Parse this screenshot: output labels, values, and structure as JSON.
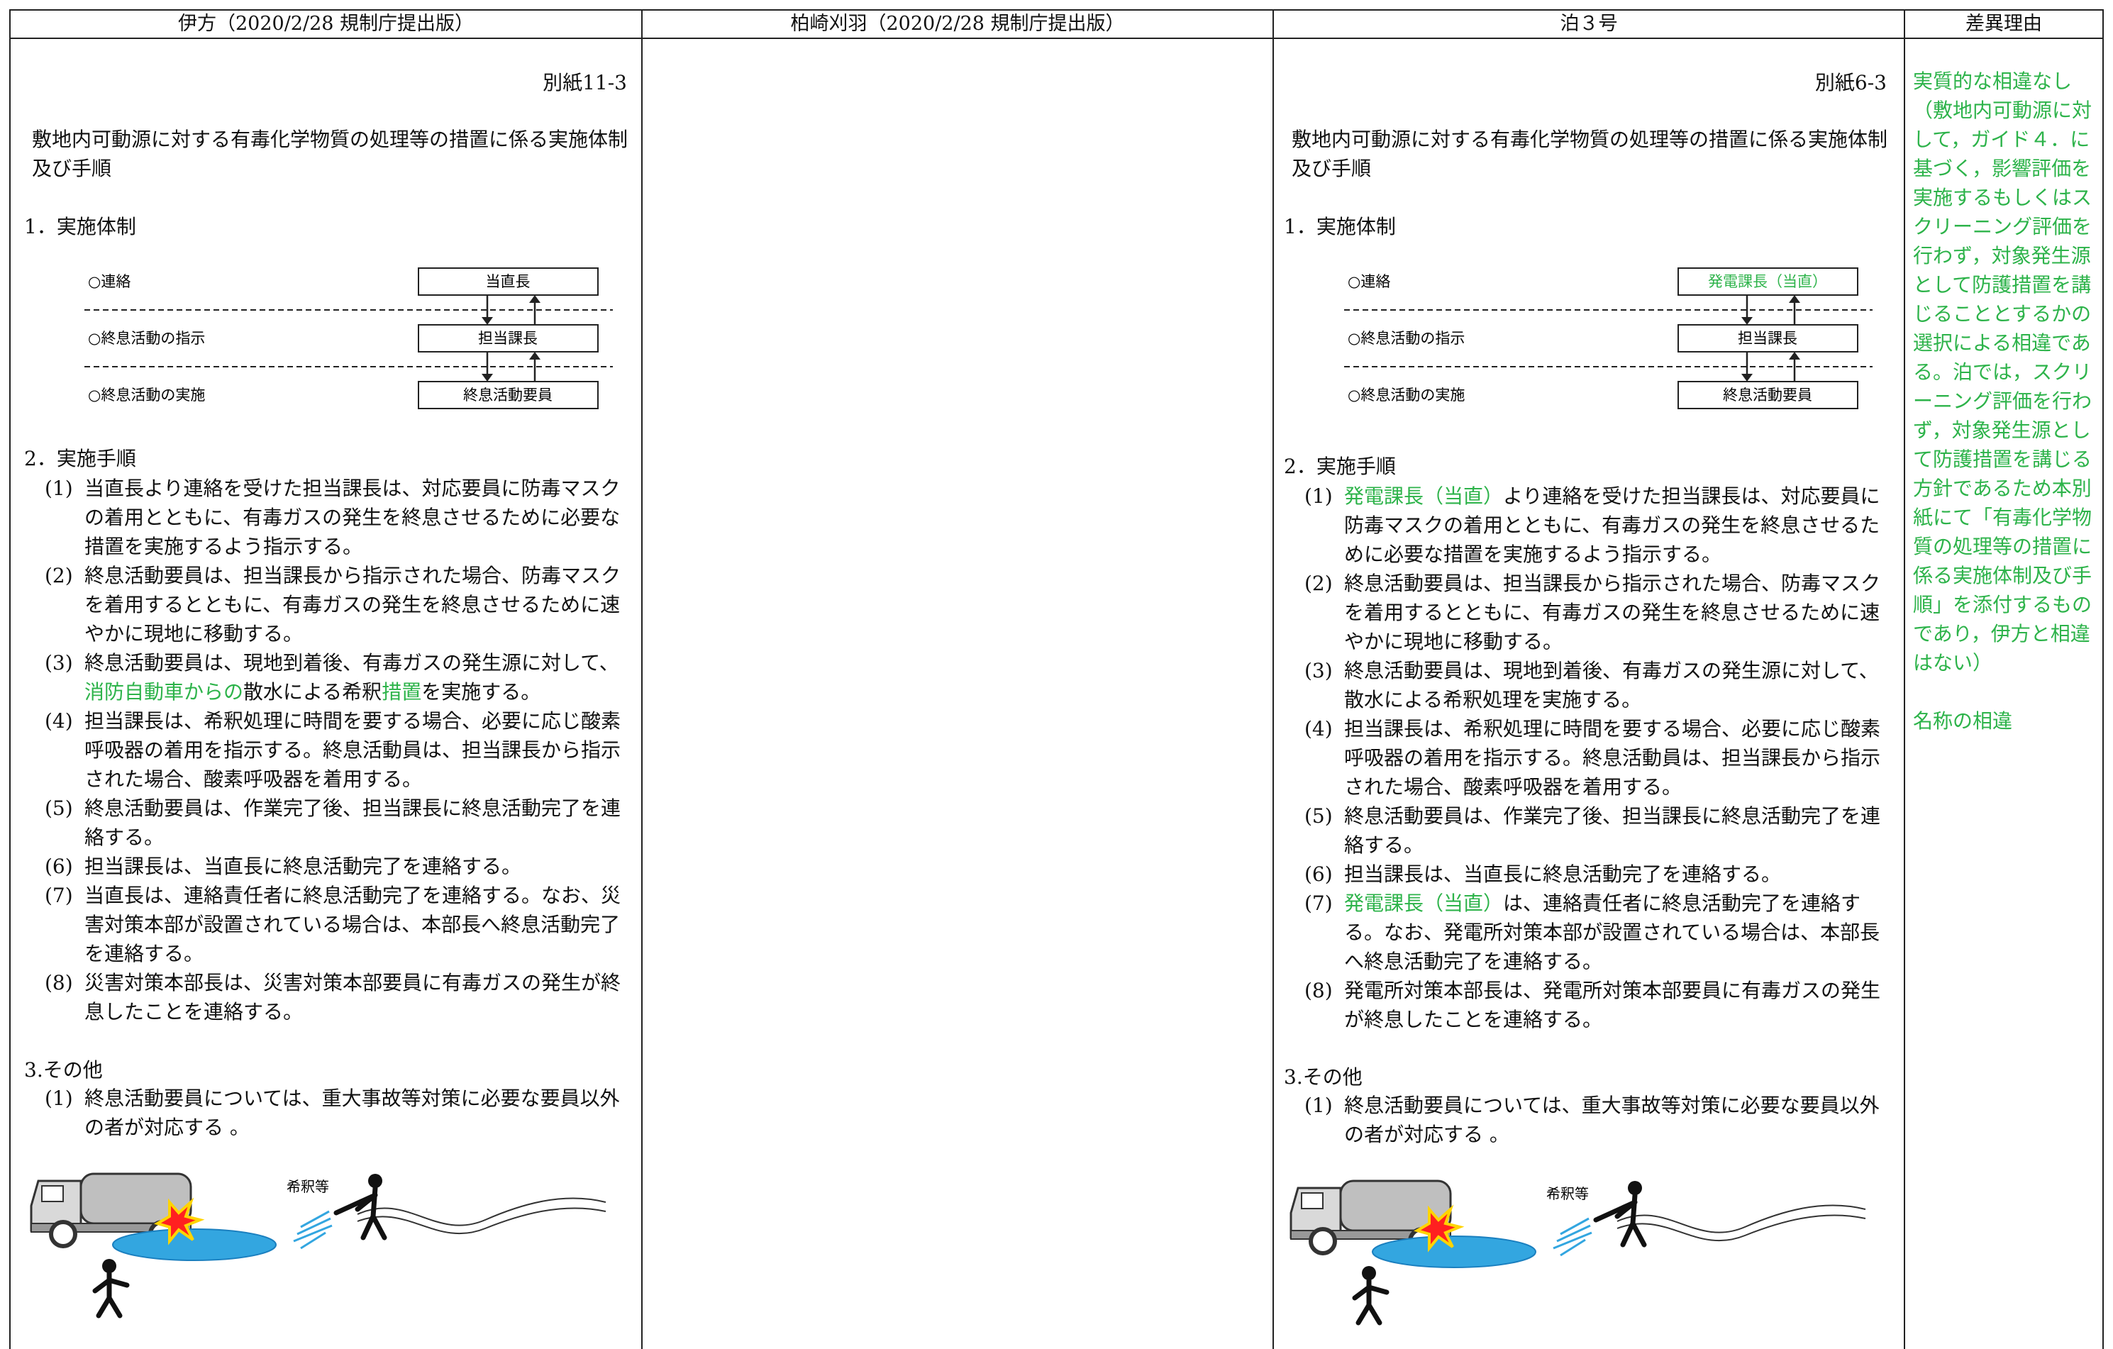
{
  "header": {
    "columns": [
      "伊方（2020/2/28 規制庁提出版）",
      "柏崎刈羽（2020/2/28 規制庁提出版）",
      "泊３号",
      "差異理由"
    ]
  },
  "ikata": {
    "ref": "別紙11-3",
    "title": "敷地内可動源に対する有毒化学物質の処理等の措置に係る実施体制及び手順",
    "section1": "1．実施体制",
    "diagram": [
      {
        "label": "○連絡",
        "box": "当直長"
      },
      {
        "label": "○終息活動の指示",
        "box": "担当課長"
      },
      {
        "label": "○終息活動の実施",
        "box": "終息活動要員"
      }
    ],
    "section2": "2．実施手順",
    "steps": [
      {
        "num": "(1)",
        "segments": [
          {
            "text": "当直長より連絡を受けた担当課長は、対応要員に防毒マスクの着用とともに、有毒ガスの発生を終息させるために必要な措置を実施するよう指示する。"
          }
        ]
      },
      {
        "num": "(2)",
        "segments": [
          {
            "text": "終息活動要員は、担当課長から指示された場合、防毒マスクを着用するとともに、有毒ガスの発生を終息させるために速やかに現地に移動する。"
          }
        ]
      },
      {
        "num": "(3)",
        "segments": [
          {
            "text": "終息活動要員は、現地到着後、有毒ガスの発生源に対して、"
          },
          {
            "text": "消防自動車からの",
            "color": "#2db34a"
          },
          {
            "text": "散水による希釈"
          },
          {
            "text": "措置",
            "color": "#2db34a"
          },
          {
            "text": "を実施する。"
          }
        ]
      },
      {
        "num": "(4)",
        "segments": [
          {
            "text": "担当課長は、希釈処理に時間を要する場合、必要に応じ酸素呼吸器の着用を指示する。終息活動員は、担当課長から指示された場合、酸素呼吸器を着用する。"
          }
        ]
      },
      {
        "num": "(5)",
        "segments": [
          {
            "text": "終息活動要員は、作業完了後、担当課長に終息活動完了を連絡する。"
          }
        ]
      },
      {
        "num": "(6)",
        "segments": [
          {
            "text": "担当課長は、当直長に終息活動完了を連絡する。"
          }
        ]
      },
      {
        "num": "(7)",
        "segments": [
          {
            "text": "当直長は、連絡責任者に終息活動完了を連絡する。なお、災害対策本部が設置されている場合は、本部長へ終息活動完了を連絡する。"
          }
        ]
      },
      {
        "num": "(8)",
        "segments": [
          {
            "text": "災害対策本部長は、災害対策本部要員に有毒ガスの発生が終息したことを連絡する。"
          }
        ]
      }
    ],
    "section3": "3.その他",
    "other": [
      {
        "num": "(1)",
        "segments": [
          {
            "text": "終息活動要員については、重大事故等対策に必要な要員以外の者が対応する 。"
          }
        ]
      }
    ],
    "figure_label": "希釈等"
  },
  "tomari": {
    "ref": "別紙6-3",
    "title": "敷地内可動源に対する有毒化学物質の処理等の措置に係る実施体制及び手順",
    "section1": "1．実施体制",
    "diagram": [
      {
        "label": "○連絡",
        "box": "発電課長（当直）",
        "color": "#2db34a"
      },
      {
        "label": "○終息活動の指示",
        "box": "担当課長"
      },
      {
        "label": "○終息活動の実施",
        "box": "終息活動要員"
      }
    ],
    "section2": "2．実施手順",
    "steps": [
      {
        "num": "(1)",
        "segments": [
          {
            "text": "発電課長（当直）",
            "color": "#2db34a"
          },
          {
            "text": "より連絡を受けた担当課長は、対応要員に防毒マスクの着用とともに、有毒ガスの発生を終息させるために必要な措置を実施するよう指示する。"
          }
        ]
      },
      {
        "num": "(2)",
        "segments": [
          {
            "text": "終息活動要員は、担当課長から指示された場合、防毒マスクを着用するとともに、有毒ガスの発生を終息させるために速やかに現地に移動する。"
          }
        ]
      },
      {
        "num": "(3)",
        "segments": [
          {
            "text": "終息活動要員は、現地到着後、有毒ガスの発生源に対して、散水による希釈処理を実施する。"
          }
        ]
      },
      {
        "num": "(4)",
        "segments": [
          {
            "text": "担当課長は、希釈処理に時間を要する場合、必要に応じ酸素呼吸器の着用を指示する。終息活動員は、担当課長から指示された場合、酸素呼吸器を着用する。"
          }
        ]
      },
      {
        "num": "(5)",
        "segments": [
          {
            "text": "終息活動要員は、作業完了後、担当課長に終息活動完了を連絡する。"
          }
        ]
      },
      {
        "num": "(6)",
        "segments": [
          {
            "text": "担当課長は、当直長に終息活動完了を連絡する。"
          }
        ]
      },
      {
        "num": "(7)",
        "segments": [
          {
            "text": "発電課長（当直）",
            "color": "#2db34a"
          },
          {
            "text": "は、連絡責任者に終息活動完了を連絡する。なお、発電所対策本部が設置されている場合は、本部長へ終息活動完了を連絡する。"
          }
        ]
      },
      {
        "num": "(8)",
        "segments": [
          {
            "text": "発電所対策本部長は、発電所対策本部要員に有毒ガスの発生が終息したことを連絡する。"
          }
        ]
      }
    ],
    "section3": "3.その他",
    "other": [
      {
        "num": "(1)",
        "segments": [
          {
            "text": "終息活動要員については、重大事故等対策に必要な要員以外の者が対応する 。"
          }
        ]
      }
    ],
    "figure_label": "希釈等"
  },
  "reasons": [
    {
      "text": "実質的な相違なし（敷地内可動源に対して，ガイド４．に基づく，影響評価を実施するもしくはスクリーニング評価を行わず，対象発生源として防護措置を講じることとするかの選択による相違である。泊では，スクリーニング評価を行わず，対象発生源として防護措置を講じる方針であるため本別紙にて「有毒化学物質の処理等の措置に係る実施体制及び手順」を添付するものであり，伊方と相違はない）",
      "color": "#2db34a"
    },
    {
      "text": "名称の相違",
      "color": "#2db34a"
    }
  ]
}
